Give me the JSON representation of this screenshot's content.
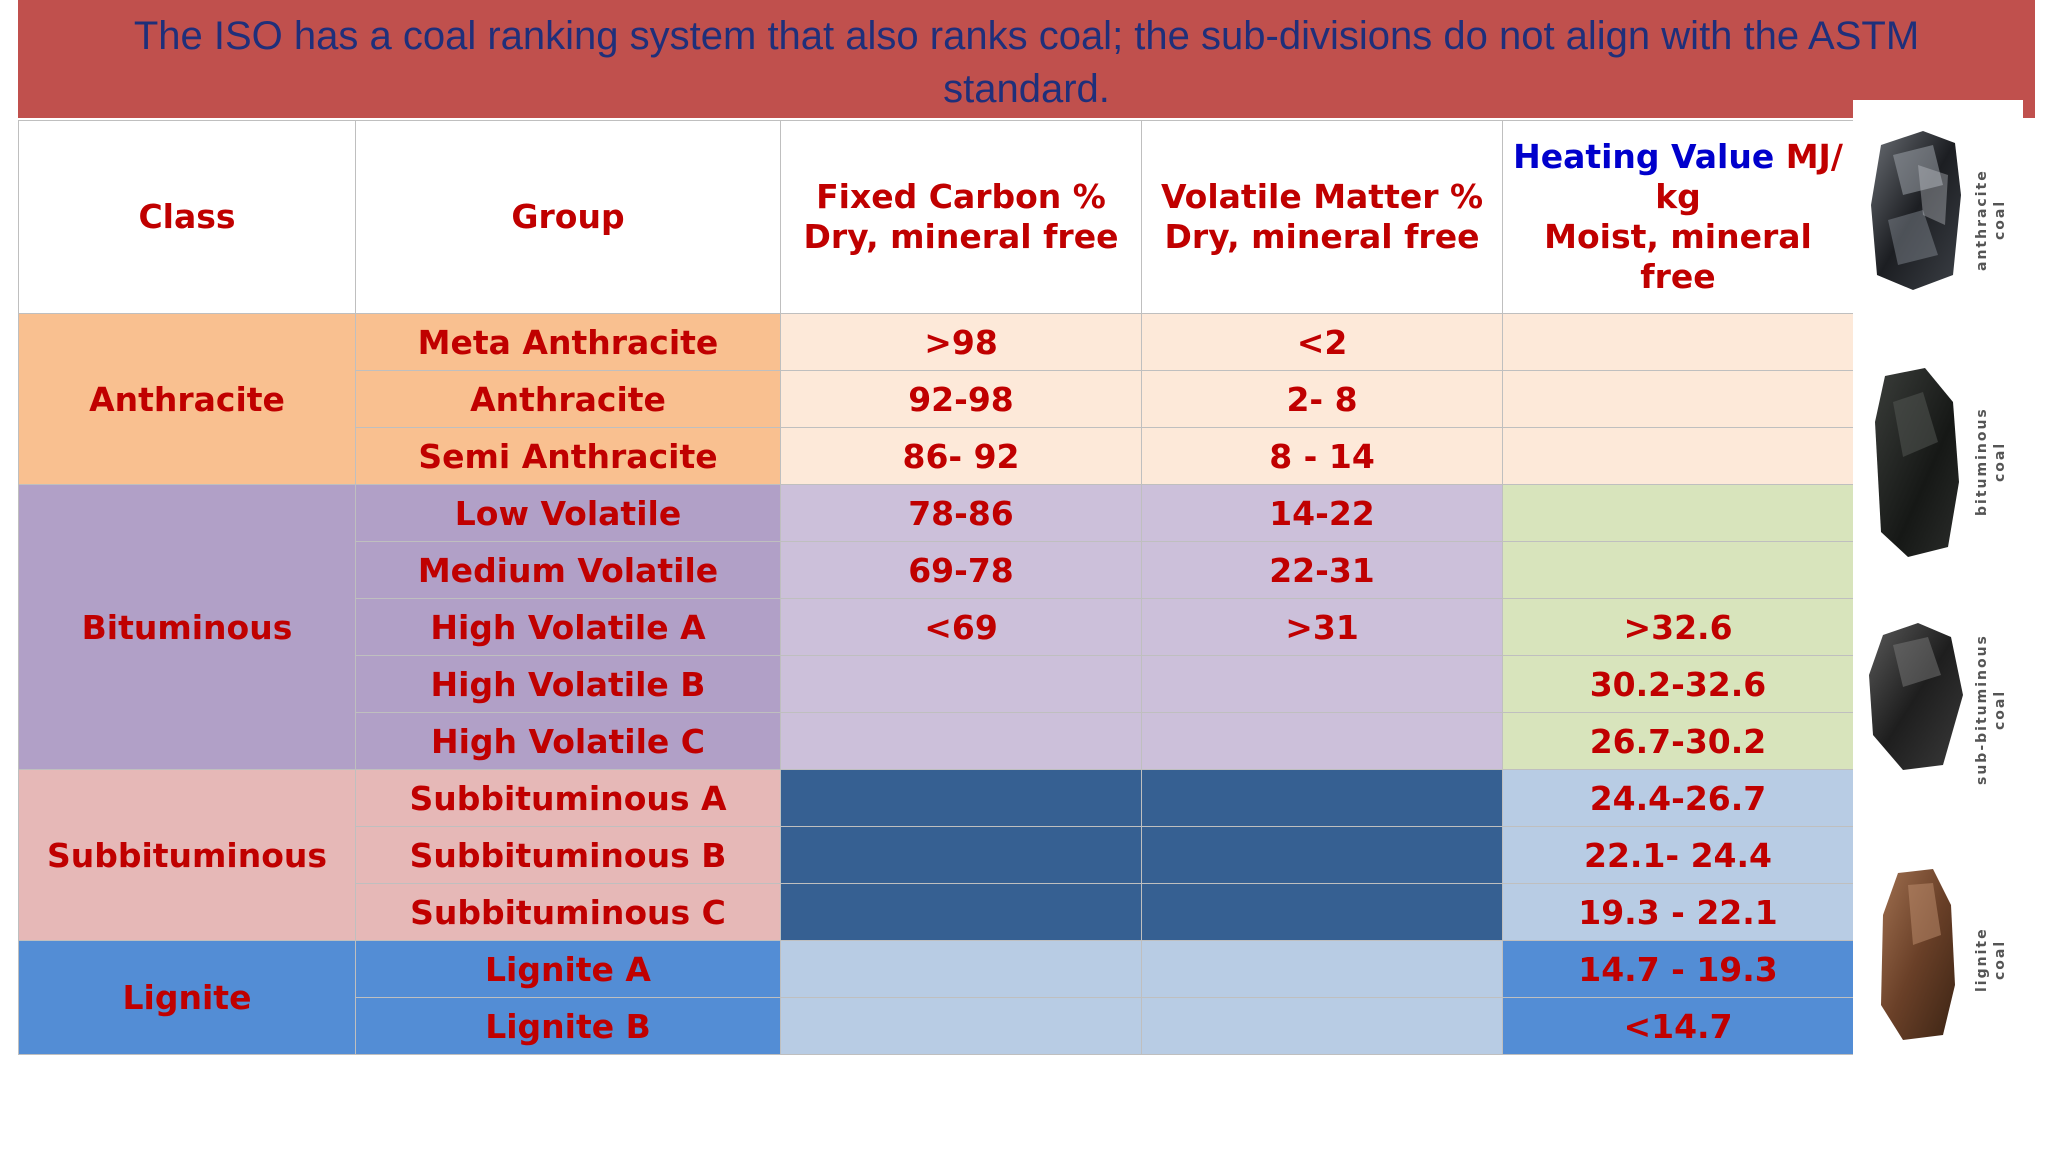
{
  "banner": {
    "title": "The ISO has a coal ranking system that also ranks coal; the sub-divisions do not align with the ASTM standard."
  },
  "table": {
    "headers": {
      "class": "Class",
      "group": "Group",
      "fixed_carbon_line1": "Fixed Carbon %",
      "fixed_carbon_line2": "Dry, mineral free",
      "volatile_line1": "Volatile Matter %",
      "volatile_line2": "Dry, mineral free",
      "heating_blue": "Heating Value",
      "heating_red": " MJ/",
      "heating_line2": "kg",
      "heating_line3": "Moist, mineral free"
    },
    "classes": {
      "anthracite": "Anthracite",
      "bituminous": "Bituminous",
      "subbituminous": "Subbituminous",
      "lignite": "Lignite"
    },
    "rows": [
      {
        "group": "Meta Anthracite",
        "fixed_carbon": ">98",
        "volatile": "<2",
        "heating": ""
      },
      {
        "group": "Anthracite",
        "fixed_carbon": "92-98",
        "volatile": "2- 8",
        "heating": ""
      },
      {
        "group": "Semi Anthracite",
        "fixed_carbon": "86- 92",
        "volatile": "8 - 14",
        "heating": ""
      },
      {
        "group": "Low Volatile",
        "fixed_carbon": "78-86",
        "volatile": "14-22",
        "heating": ""
      },
      {
        "group": "Medium Volatile",
        "fixed_carbon": "69-78",
        "volatile": "22-31",
        "heating": ""
      },
      {
        "group": "High Volatile A",
        "fixed_carbon": "<69",
        "volatile": ">31",
        "heating": ">32.6"
      },
      {
        "group": "High Volatile B",
        "fixed_carbon": "",
        "volatile": "",
        "heating": "30.2-32.6"
      },
      {
        "group": "High Volatile C",
        "fixed_carbon": "",
        "volatile": "",
        "heating": "26.7-30.2"
      },
      {
        "group": "Subbituminous A",
        "fixed_carbon": "",
        "volatile": "",
        "heating": "24.4-26.7"
      },
      {
        "group": "Subbituminous B",
        "fixed_carbon": "",
        "volatile": "",
        "heating": "22.1- 24.4"
      },
      {
        "group": "Subbituminous C",
        "fixed_carbon": "",
        "volatile": "",
        "heating": "19.3 - 22.1"
      },
      {
        "group": "Lignite A",
        "fixed_carbon": "",
        "volatile": "",
        "heating": "14.7 - 19.3"
      },
      {
        "group": "Lignite B",
        "fixed_carbon": "",
        "volatile": "",
        "heating": "<14.7"
      }
    ]
  },
  "side_images": [
    {
      "icon": "anthracite-coal-image",
      "label_line1": "anthracite",
      "label_line2": "coal"
    },
    {
      "icon": "bituminous-coal-image",
      "label_line1": "bituminous",
      "label_line2": "coal"
    },
    {
      "icon": "sub-bituminous-coal-image",
      "label_line1": "sub-bituminous",
      "label_line2": "coal"
    },
    {
      "icon": "lignite-coal-image",
      "label_line1": "lignite",
      "label_line2": "coal"
    }
  ],
  "colors": {
    "banner": "#c0504d",
    "banner_text": "#1f2f7a",
    "cell_text": "#c00000",
    "anthracite": "#f9c090",
    "bituminous": "#b1a0c7",
    "subbituminous": "#e6b8b7",
    "lignite": "#538dd5"
  }
}
